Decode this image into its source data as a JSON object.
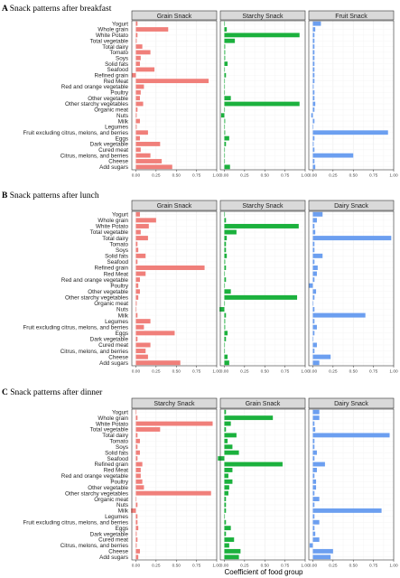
{
  "figure": {
    "x_axis_label": "Coefficient of food group",
    "food_groups": [
      "Yogurt",
      "Whole grain",
      "White Potato",
      "Total vegetable",
      "Total dairy",
      "Tomato",
      "Soys",
      "Solid fats",
      "Seafood",
      "Refined grain",
      "Red Meat",
      "Red and orange vegetable",
      "Poultry",
      "Other vegetable",
      "Other starchy vegetables",
      "Organic meat",
      "Nuts",
      "Milk",
      "Legumes",
      "Fruit excluding citrus, melons, and berries",
      "Eggs",
      "Dark vegetable",
      "Cured meat",
      "Citrus, melons, and berries",
      "Cheese",
      "Add sugars"
    ],
    "x_tick_labels": [
      "0.00",
      "0.25",
      "0.50",
      "0.75",
      "1.00"
    ],
    "colors": {
      "red": "#f07f7a",
      "green": "#1bb13d",
      "blue": "#6c9ff0",
      "strip_bg": "#d9d9d9",
      "grid": "#ebebeb"
    }
  },
  "chart_data": [
    {
      "type": "bar",
      "panel_label": "A",
      "panel_title": "Snack patterns after breakfast",
      "xlim": [
        -0.05,
        1.0
      ],
      "facets": [
        {
          "name": "Grain Snack",
          "color": "red",
          "values": [
            0.02,
            0.4,
            0.02,
            0.01,
            0.08,
            0.18,
            0.06,
            0.05,
            0.23,
            -0.05,
            0.9,
            0.1,
            0.06,
            0.05,
            0.09,
            0.02,
            0.01,
            0.05,
            0.01,
            0.15,
            0.05,
            0.3,
            0.06,
            0.18,
            0.32,
            0.45
          ]
        },
        {
          "name": "Starchy Snack",
          "color": "green",
          "values": [
            0.0,
            0.03,
            0.93,
            0.13,
            0.01,
            0.01,
            0.01,
            0.04,
            0.0,
            0.02,
            0.0,
            0.0,
            0.0,
            0.08,
            0.93,
            0.0,
            -0.04,
            0.01,
            0.0,
            0.01,
            0.06,
            0.02,
            0.0,
            0.0,
            0.0,
            0.07
          ]
        },
        {
          "name": "Fruit Snack",
          "color": "blue",
          "values": [
            0.1,
            0.03,
            0.02,
            0.02,
            0.02,
            0.02,
            0.02,
            0.02,
            0.02,
            0.02,
            0.02,
            0.01,
            0.02,
            0.02,
            0.03,
            0.02,
            -0.02,
            0.02,
            0.0,
            0.93,
            0.02,
            0.01,
            0.02,
            0.5,
            0.02,
            0.03
          ]
        }
      ]
    },
    {
      "type": "bar",
      "panel_label": "B",
      "panel_title": "Snack patterns after lunch",
      "xlim": [
        -0.05,
        1.0
      ],
      "facets": [
        {
          "name": "Grain Snack",
          "color": "red",
          "values": [
            0.05,
            0.25,
            0.16,
            0.06,
            0.15,
            0.02,
            0.03,
            0.12,
            0.02,
            0.85,
            0.12,
            0.05,
            0.03,
            0.05,
            0.03,
            0.01,
            0.0,
            0.02,
            0.18,
            0.1,
            0.48,
            0.02,
            0.18,
            0.12,
            0.15,
            0.55
          ]
        },
        {
          "name": "Starchy Snack",
          "color": "green",
          "values": [
            0.0,
            0.02,
            0.92,
            0.15,
            0.03,
            0.02,
            0.02,
            0.03,
            0.01,
            0.02,
            0.0,
            0.02,
            0.0,
            0.08,
            0.9,
            0.0,
            -0.06,
            0.02,
            0.01,
            0.01,
            0.04,
            0.02,
            0.0,
            0.0,
            0.04,
            0.06
          ]
        },
        {
          "name": "Dairy Snack",
          "color": "blue",
          "values": [
            0.12,
            0.05,
            0.02,
            0.03,
            0.97,
            0.02,
            0.02,
            0.12,
            0.02,
            0.06,
            0.05,
            0.02,
            -0.05,
            0.04,
            0.02,
            0.0,
            0.02,
            0.65,
            0.02,
            0.05,
            0.02,
            0.0,
            0.05,
            0.02,
            0.22,
            0.08
          ]
        }
      ]
    },
    {
      "type": "bar",
      "panel_label": "C",
      "panel_title": "Snack patterns after dinner",
      "xlim": [
        -0.05,
        1.0
      ],
      "facets": [
        {
          "name": "Starchy Snack",
          "color": "red",
          "values": [
            0.0,
            0.02,
            0.95,
            0.3,
            0.02,
            0.05,
            0.02,
            0.05,
            0.02,
            0.08,
            0.06,
            0.06,
            0.08,
            0.1,
            0.93,
            0.0,
            0.02,
            -0.06,
            0.02,
            0.02,
            0.03,
            0.01,
            0.02,
            0.01,
            0.05,
            0.03
          ]
        },
        {
          "name": "Grain Snack",
          "color": "green",
          "values": [
            0.02,
            0.6,
            0.08,
            0.02,
            0.15,
            0.04,
            0.1,
            0.18,
            -0.08,
            0.72,
            0.1,
            0.05,
            0.1,
            0.06,
            0.05,
            0.02,
            0.02,
            0.02,
            0.0,
            0.02,
            0.08,
            0.02,
            0.12,
            0.06,
            0.2,
            0.18
          ]
        },
        {
          "name": "Dairy Snack",
          "color": "blue",
          "values": [
            0.08,
            0.08,
            0.02,
            0.03,
            0.95,
            0.02,
            0.02,
            0.05,
            0.02,
            0.15,
            0.05,
            0.02,
            0.04,
            0.04,
            0.02,
            0.08,
            0.02,
            0.85,
            0.02,
            0.08,
            0.02,
            0.03,
            0.08,
            -0.04,
            0.25,
            0.22
          ]
        }
      ]
    }
  ]
}
